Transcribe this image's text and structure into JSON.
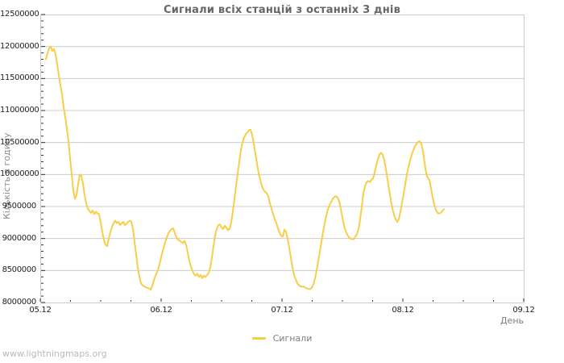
{
  "footer": {
    "watermark": "www.lightningmaps.org"
  },
  "chart_data": {
    "type": "line",
    "title": "Сигнали всіх станцій з останніх 3 днів",
    "xlabel": "День",
    "ylabel": "Кількість в годину",
    "legend": [
      "Сигнали"
    ],
    "legend_position": "bottom-center",
    "grid": "horizontal-only",
    "colors": {
      "line": "#f8cd47",
      "grid": "#cccccc",
      "tick": "#333333",
      "title": "#666666",
      "axis_text": "#222222",
      "muted_text": "#7d7d7d",
      "watermark": "#b9b9b9"
    },
    "x_axis": {
      "tick_labels": [
        "05.12",
        "06.12",
        "07.12",
        "08.12",
        "09.12"
      ],
      "range_days": [
        0,
        4
      ],
      "major_tick_days": 1,
      "minor_tick_days": 0.25
    },
    "y_axis": {
      "min": 8000000,
      "max": 12500000,
      "major_step": 500000,
      "minor_step": 100000,
      "tick_labels": [
        "8000000",
        "8500000",
        "9000000",
        "9500000",
        "10000000",
        "10500000",
        "11000000",
        "11500000",
        "12000000",
        "12500000"
      ]
    },
    "series": [
      {
        "name": "Сигнали",
        "color": "#f8cd47",
        "unit_scale": 1000000,
        "t0_days": 0.047,
        "dt_days": 0.013333,
        "values_millions": [
          11.8,
          11.9,
          11.97,
          12,
          11.93,
          11.96,
          11.88,
          11.72,
          11.55,
          11.4,
          11.25,
          11.05,
          10.9,
          10.72,
          10.52,
          10.25,
          10,
          9.75,
          9.62,
          9.68,
          9.85,
          10,
          9.98,
          9.85,
          9.68,
          9.55,
          9.47,
          9.43,
          9.4,
          9.44,
          9.38,
          9.42,
          9.39,
          9.38,
          9.25,
          9.1,
          8.97,
          8.9,
          8.88,
          9,
          9.1,
          9.18,
          9.24,
          9.28,
          9.24,
          9.26,
          9.21,
          9.24,
          9.26,
          9.21,
          9.23,
          9.26,
          9.28,
          9.26,
          9.15,
          8.95,
          8.75,
          8.55,
          8.4,
          8.3,
          8.27,
          8.25,
          8.24,
          8.23,
          8.22,
          8.2,
          8.26,
          8.35,
          8.42,
          8.47,
          8.55,
          8.65,
          8.76,
          8.85,
          8.94,
          9.02,
          9.08,
          9.12,
          9.15,
          9.16,
          9.08,
          9.02,
          8.98,
          8.97,
          8.94,
          8.93,
          8.96,
          8.9,
          8.78,
          8.65,
          8.56,
          8.49,
          8.44,
          8.42,
          8.45,
          8.4,
          8.43,
          8.38,
          8.42,
          8.4,
          8.43,
          8.46,
          8.55,
          8.7,
          8.88,
          9.05,
          9.15,
          9.21,
          9.22,
          9.17,
          9.15,
          9.2,
          9.17,
          9.13,
          9.15,
          9.25,
          9.42,
          9.62,
          9.82,
          10.02,
          10.2,
          10.38,
          10.5,
          10.58,
          10.63,
          10.66,
          10.69,
          10.7,
          10.62,
          10.48,
          10.32,
          10.17,
          10.02,
          9.92,
          9.82,
          9.76,
          9.73,
          9.71,
          9.66,
          9.55,
          9.46,
          9.38,
          9.3,
          9.24,
          9.16,
          9.09,
          9.04,
          9.03,
          9.14,
          9.1,
          9,
          8.86,
          8.7,
          8.55,
          8.43,
          8.36,
          8.3,
          8.27,
          8.25,
          8.25,
          8.25,
          8.23,
          8.22,
          8.21,
          8.21,
          8.23,
          8.28,
          8.38,
          8.5,
          8.65,
          8.8,
          8.95,
          9.1,
          9.24,
          9.36,
          9.46,
          9.52,
          9.57,
          9.62,
          9.65,
          9.66,
          9.64,
          9.58,
          9.46,
          9.33,
          9.2,
          9.12,
          9.06,
          9.02,
          9,
          8.99,
          8.99,
          9.03,
          9.07,
          9.15,
          9.3,
          9.5,
          9.7,
          9.82,
          9.88,
          9.9,
          9.88,
          9.92,
          9.94,
          10.03,
          10.14,
          10.24,
          10.31,
          10.34,
          10.31,
          10.22,
          10.08,
          9.92,
          9.76,
          9.6,
          9.47,
          9.37,
          9.3,
          9.26,
          9.3,
          9.42,
          9.56,
          9.7,
          9.85,
          10,
          10.12,
          10.22,
          10.31,
          10.38,
          10.44,
          10.48,
          10.51,
          10.52,
          10.48,
          10.36,
          10.18,
          10.02,
          9.94,
          9.92,
          9.78,
          9.64,
          9.53,
          9.45,
          9.4,
          9.39,
          9.4,
          9.43,
          9.46
        ]
      }
    ]
  }
}
